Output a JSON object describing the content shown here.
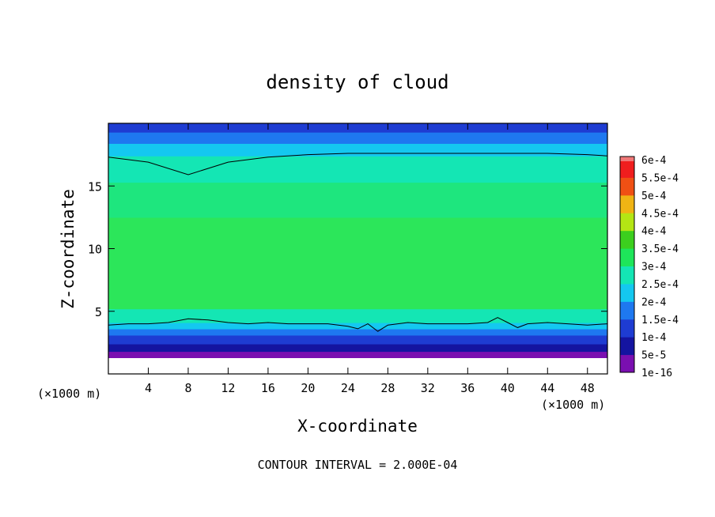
{
  "chart_data": {
    "type": "heatmap",
    "title": "density of cloud",
    "xlabel": "X-coordinate",
    "ylabel": "Z-coordinate",
    "x_unit_left": "(×1000 m)",
    "x_unit_right": "(×1000 m)",
    "xlim": [
      0,
      50
    ],
    "ylim": [
      0,
      20
    ],
    "xticks": [
      4,
      8,
      12,
      16,
      20,
      24,
      28,
      32,
      36,
      40,
      44,
      48
    ],
    "xtick_labels": [
      "4",
      "8",
      "12",
      "16",
      "20",
      "24",
      "28",
      "32",
      "36",
      "40",
      "44",
      "48"
    ],
    "yticks": [
      5,
      10,
      15
    ],
    "ytick_labels": [
      "5",
      "10",
      "15"
    ],
    "colorbar": {
      "levels": [
        "1e-16",
        "5e-5",
        "1e-4",
        "1.5e-4",
        "2e-4",
        "2.5e-4",
        "3e-4",
        "3.5e-4",
        "4e-4",
        "4.5e-4",
        "5e-4",
        "5.5e-4",
        "6e-4"
      ],
      "colors": [
        "#7a0fb0",
        "#1414a0",
        "#1e3cd2",
        "#1e78f0",
        "#14c8f0",
        "#14e6b4",
        "#1ee65a",
        "#3ccf1e",
        "#b4e614",
        "#f0b414",
        "#f05014",
        "#f01e1e",
        "#f07878"
      ]
    },
    "contour_interval_label": "CONTOUR INTERVAL = 2.000E-04",
    "field_bands": [
      {
        "z_from": 0,
        "z_to": 1.3,
        "color": "#ffffff"
      },
      {
        "z_from": 1.3,
        "z_to": 1.8,
        "color": "#7a0fb0"
      },
      {
        "z_from": 1.8,
        "z_to": 2.4,
        "color": "#1414a0"
      },
      {
        "z_from": 2.4,
        "z_to": 3.1,
        "color": "#1e3cd2"
      },
      {
        "z_from": 3.1,
        "z_to": 3.6,
        "color": "#1e78f0"
      },
      {
        "z_from": 3.6,
        "z_to": 4.1,
        "color": "#14c8f0"
      },
      {
        "z_from": 4.1,
        "z_to": 5.2,
        "color": "#14e6b4"
      },
      {
        "z_from": 5.2,
        "z_to": 12.5,
        "color": "#2ce65a"
      },
      {
        "z_from": 12.5,
        "z_to": 15.3,
        "color": "#1ee67e"
      },
      {
        "z_from": 15.3,
        "z_to": 17.4,
        "color": "#14e6b4"
      },
      {
        "z_from": 17.4,
        "z_to": 18.4,
        "color": "#14c8f0"
      },
      {
        "z_from": 18.4,
        "z_to": 19.3,
        "color": "#1e78f0"
      },
      {
        "z_from": 19.3,
        "z_to": 20,
        "color": "#1e3cd2"
      }
    ],
    "upper_contour": {
      "x": [
        0,
        4,
        8,
        12,
        16,
        20,
        24,
        28,
        32,
        36,
        40,
        44,
        48,
        50
      ],
      "z": [
        17.3,
        16.9,
        15.9,
        16.9,
        17.3,
        17.5,
        17.6,
        17.6,
        17.6,
        17.6,
        17.6,
        17.6,
        17.5,
        17.4
      ]
    },
    "lower_contour": {
      "x": [
        0,
        2,
        4,
        6,
        8,
        10,
        12,
        14,
        16,
        18,
        20,
        22,
        24,
        25,
        26,
        27,
        28,
        30,
        32,
        34,
        36,
        38,
        39,
        40,
        41,
        42,
        44,
        46,
        48,
        50
      ],
      "z": [
        3.9,
        4.0,
        4.0,
        4.1,
        4.4,
        4.3,
        4.1,
        4.0,
        4.1,
        4.0,
        4.0,
        4.0,
        3.8,
        3.6,
        4.0,
        3.4,
        3.9,
        4.1,
        4.0,
        4.0,
        4.0,
        4.1,
        4.5,
        4.1,
        3.7,
        4.0,
        4.1,
        4.0,
        3.9,
        4.0
      ]
    }
  }
}
